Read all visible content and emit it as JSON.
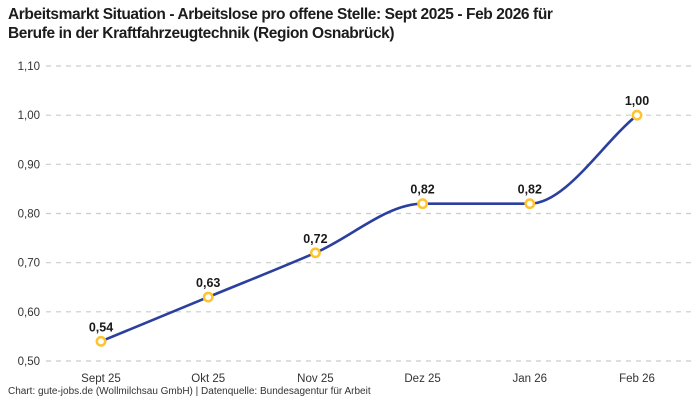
{
  "page": {
    "title_line1": "Arbeitsmarkt Situation - Arbeitslose pro offene Stelle: Sept 2025 - Feb 2026 für",
    "title_line2": "Berufe in der Kraftfahrzeugtechnik (Region Osnabrück)",
    "footer": "Chart: gute-jobs.de (Wollmilchsau GmbH) | Datenquelle: Bundesagentur für Arbeit"
  },
  "chart_data": {
    "type": "line",
    "title": "Arbeitsmarkt Situation - Arbeitslose pro offene Stelle: Sept 2025 - Feb 2026 für Berufe in der Kraftfahrzeugtechnik (Region Osnabrück)",
    "categories": [
      "Sept 25",
      "Okt 25",
      "Nov 25",
      "Dez 25",
      "Jan 26",
      "Feb 26"
    ],
    "values": [
      0.54,
      0.63,
      0.72,
      0.82,
      0.82,
      1.0
    ],
    "value_labels": [
      "0,54",
      "0,63",
      "0,72",
      "0,82",
      "0,82",
      "1,00"
    ],
    "ylim": [
      0.5,
      1.1
    ],
    "ytick_step": 0.1,
    "ytick_labels": [
      "0,50",
      "0,60",
      "0,70",
      "0,80",
      "0,90",
      "1,00",
      "1,10"
    ],
    "xlabel": "",
    "ylabel": "",
    "grid": "horizontal-dashed",
    "legend": "none",
    "curve": "monotone",
    "line_color": "#2b3f9e",
    "marker_ring_color": "#ffc32e",
    "marker_fill_color": "#ffffff",
    "grid_color": "#cccccc"
  }
}
